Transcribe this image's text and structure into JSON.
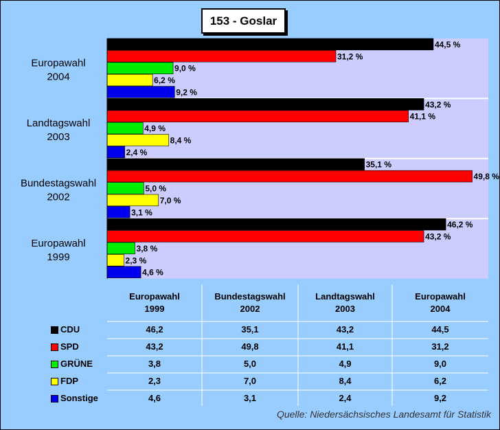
{
  "title": "153 - Goslar",
  "source": "Quelle: Niedersächsisches Landesamt für Statistik",
  "colors": {
    "CDU": "#000000",
    "SPD": "#ff0000",
    "GRÜNE": "#00ee00",
    "FDP": "#ffff00",
    "Sonstige": "#0000ee",
    "plot_bg": "#ccccff",
    "page_bg": "#99ccff"
  },
  "chart_data": {
    "type": "bar",
    "orientation": "horizontal",
    "categories": [
      "Europawahl 2004",
      "Landtagswahl 2003",
      "Bundestagswahl 2002",
      "Europawahl 1999"
    ],
    "xlim": [
      0,
      52
    ],
    "series": [
      {
        "name": "CDU",
        "values": [
          44.5,
          43.2,
          35.1,
          46.2
        ]
      },
      {
        "name": "SPD",
        "values": [
          31.2,
          41.1,
          49.8,
          43.2
        ]
      },
      {
        "name": "GRÜNE",
        "values": [
          9.0,
          4.9,
          5.0,
          3.8
        ]
      },
      {
        "name": "FDP",
        "values": [
          6.2,
          8.4,
          7.0,
          2.3
        ]
      },
      {
        "name": "Sonstige",
        "values": [
          9.2,
          2.4,
          3.1,
          4.6
        ]
      }
    ],
    "value_suffix": " %",
    "decimal_separator": ","
  },
  "table": {
    "headers": [
      [
        "Europawahl",
        "1999"
      ],
      [
        "Bundestagswahl",
        "2002"
      ],
      [
        "Landtagswahl",
        "2003"
      ],
      [
        "Europawahl",
        "2004"
      ]
    ],
    "rows": [
      {
        "party": "CDU",
        "values": [
          "46,2",
          "35,1",
          "43,2",
          "44,5"
        ]
      },
      {
        "party": "SPD",
        "values": [
          "43,2",
          "49,8",
          "41,1",
          "31,2"
        ]
      },
      {
        "party": "GRÜNE",
        "values": [
          "3,8",
          "5,0",
          "4,9",
          "9,0"
        ]
      },
      {
        "party": "FDP",
        "values": [
          "2,3",
          "7,0",
          "8,4",
          "6,2"
        ]
      },
      {
        "party": "Sonstige",
        "values": [
          "4,6",
          "3,1",
          "2,4",
          "9,2"
        ]
      }
    ]
  }
}
